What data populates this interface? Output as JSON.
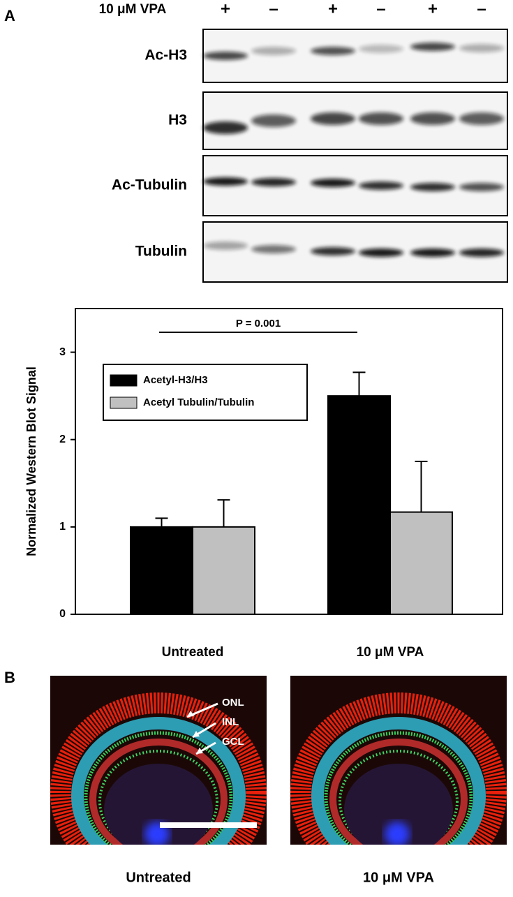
{
  "panel_a": {
    "label": "A",
    "blot": {
      "treatment_label": "10 μM VPA",
      "lanes": [
        "+",
        "–",
        "+",
        "–",
        "+",
        "–"
      ],
      "rows": [
        "Ac-H3",
        "H3",
        "Ac-Tubulin",
        "Tubulin"
      ]
    }
  },
  "chart_data": {
    "type": "bar",
    "annotation": "P = 0.001",
    "y_label": "Normalized Western Blot Signal",
    "categories": [
      "Untreated",
      "10 μM VPA"
    ],
    "series": [
      {
        "name": "Acetyl-H3/H3",
        "color": "#000000",
        "values": [
          1.0,
          2.5
        ],
        "errors": [
          0.1,
          0.27
        ]
      },
      {
        "name": "Acetyl Tubulin/Tubulin",
        "color": "#c0c0c0",
        "values": [
          1.0,
          1.17
        ],
        "errors": [
          0.31,
          0.58
        ]
      }
    ],
    "ylim": [
      0,
      3.5
    ],
    "yticks": [
      0,
      1,
      2,
      3
    ],
    "legend": "upper left",
    "grid": false
  },
  "panel_b": {
    "label": "B",
    "layers": [
      "ONL",
      "INL",
      "GCL"
    ],
    "captions": [
      "Untreated",
      "10 μM VPA"
    ]
  }
}
